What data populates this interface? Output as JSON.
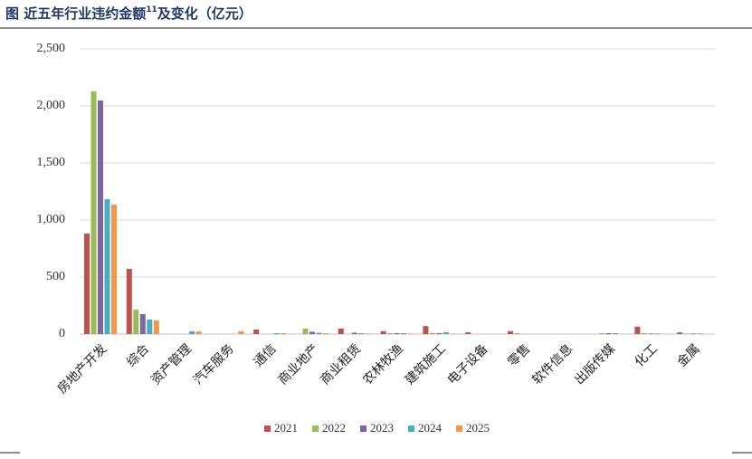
{
  "chart_data": {
    "type": "bar",
    "title": "图  近五年行业违约金额",
    "title_note": "11",
    "title_suffix": "及变化（亿元）",
    "categories": [
      "房地产开发",
      "综合",
      "资产管理",
      "汽车服务",
      "通信",
      "商业地产",
      "商业租赁",
      "农林牧渔",
      "建筑施工",
      "电子设备",
      "零售",
      "软件信息",
      "出版传媒",
      "化工",
      "金属"
    ],
    "series": [
      {
        "name": "2021",
        "color": "#c0504d",
        "values": [
          881,
          571,
          0,
          0,
          40,
          0,
          48,
          25,
          70,
          15,
          25,
          0,
          0,
          65,
          15
        ]
      },
      {
        "name": "2022",
        "color": "#9bbb59",
        "values": [
          2127,
          214,
          0,
          0,
          0,
          48,
          0,
          8,
          10,
          0,
          8,
          0,
          8,
          8,
          5
        ]
      },
      {
        "name": "2023",
        "color": "#8064a2",
        "values": [
          2048,
          175,
          0,
          0,
          0,
          20,
          12,
          8,
          8,
          0,
          0,
          0,
          8,
          5,
          5
        ]
      },
      {
        "name": "2024",
        "color": "#4bacc6",
        "values": [
          1183,
          127,
          24,
          0,
          8,
          12,
          8,
          8,
          16,
          0,
          0,
          0,
          8,
          5,
          5
        ]
      },
      {
        "name": "2025",
        "color": "#f79646",
        "values": [
          1135,
          119,
          24,
          24,
          8,
          8,
          5,
          5,
          5,
          0,
          0,
          0,
          0,
          0,
          0
        ]
      }
    ],
    "ylim": [
      0,
      2500
    ],
    "yticks": [
      0,
      500,
      {
        "value": 1000,
        "label": "1,000"
      },
      {
        "value": 1500,
        "label": "1,500"
      },
      {
        "value": 2000,
        "label": "2,000"
      },
      {
        "value": 2500,
        "label": "2,500"
      }
    ],
    "grid": true
  }
}
